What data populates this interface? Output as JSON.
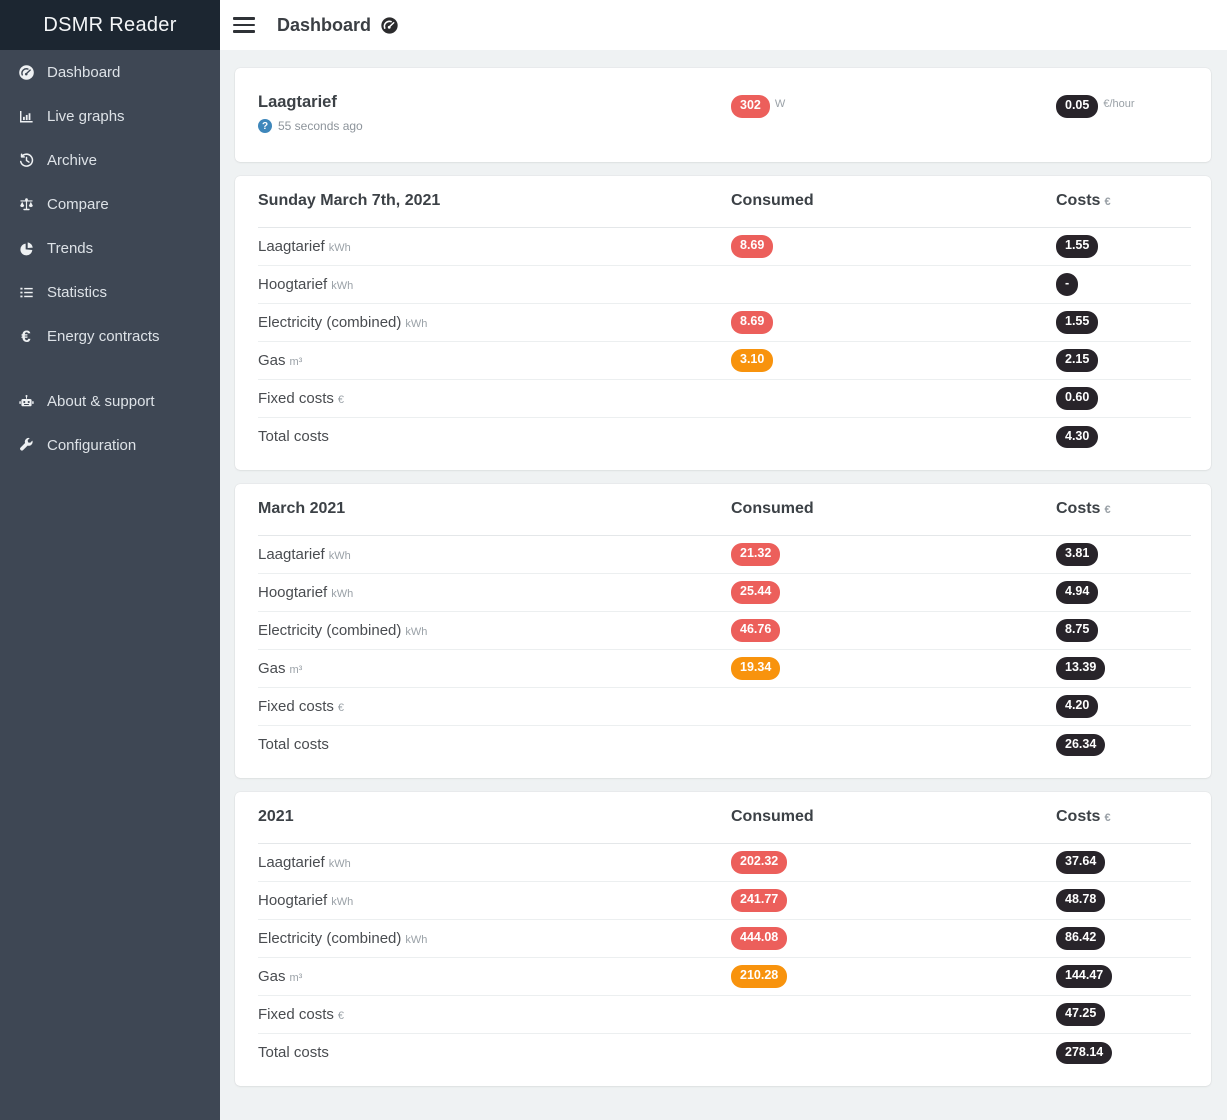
{
  "app": {
    "title": "DSMR Reader"
  },
  "topbar": {
    "title": "Dashboard",
    "title_icon": "gauge"
  },
  "sidebar": {
    "items": [
      {
        "label": "Dashboard",
        "icon": "gauge"
      },
      {
        "label": "Live graphs",
        "icon": "bar-chart"
      },
      {
        "label": "Archive",
        "icon": "history"
      },
      {
        "label": "Compare",
        "icon": "balance-scale"
      },
      {
        "label": "Trends",
        "icon": "pie-chart"
      },
      {
        "label": "Statistics",
        "icon": "list"
      },
      {
        "label": "Energy contracts",
        "icon": "euro"
      }
    ],
    "secondary_items": [
      {
        "label": "About & support",
        "icon": "robot"
      },
      {
        "label": "Configuration",
        "icon": "wrench"
      }
    ]
  },
  "live_card": {
    "title": "Laagtarief",
    "updated": "55 seconds ago",
    "consumed": {
      "value": "302",
      "unit": "W",
      "color": "red"
    },
    "costs": {
      "value": "0.05",
      "unit": "€/hour"
    }
  },
  "tables": [
    {
      "title": "Sunday March 7th, 2021",
      "columns": {
        "consumed": "Consumed",
        "costs": "Costs",
        "costs_unit": "€"
      },
      "rows": [
        {
          "label": "Laagtarief",
          "unit": "kWh",
          "consumed": "8.69",
          "consumed_color": "red",
          "costs": "1.55"
        },
        {
          "label": "Hoogtarief",
          "unit": "kWh",
          "consumed": null,
          "consumed_color": null,
          "costs": "-"
        },
        {
          "label": "Electricity (combined)",
          "unit": "kWh",
          "consumed": "8.69",
          "consumed_color": "red",
          "costs": "1.55"
        },
        {
          "label": "Gas",
          "unit": "m³",
          "consumed": "3.10",
          "consumed_color": "orange",
          "costs": "2.15"
        },
        {
          "label": "Fixed costs",
          "unit": "€",
          "consumed": null,
          "consumed_color": null,
          "costs": "0.60"
        },
        {
          "label": "Total costs",
          "unit": "",
          "consumed": null,
          "consumed_color": null,
          "costs": "4.30"
        }
      ]
    },
    {
      "title": "March 2021",
      "columns": {
        "consumed": "Consumed",
        "costs": "Costs",
        "costs_unit": "€"
      },
      "rows": [
        {
          "label": "Laagtarief",
          "unit": "kWh",
          "consumed": "21.32",
          "consumed_color": "red",
          "costs": "3.81"
        },
        {
          "label": "Hoogtarief",
          "unit": "kWh",
          "consumed": "25.44",
          "consumed_color": "red",
          "costs": "4.94"
        },
        {
          "label": "Electricity (combined)",
          "unit": "kWh",
          "consumed": "46.76",
          "consumed_color": "red",
          "costs": "8.75"
        },
        {
          "label": "Gas",
          "unit": "m³",
          "consumed": "19.34",
          "consumed_color": "orange",
          "costs": "13.39"
        },
        {
          "label": "Fixed costs",
          "unit": "€",
          "consumed": null,
          "consumed_color": null,
          "costs": "4.20"
        },
        {
          "label": "Total costs",
          "unit": "",
          "consumed": null,
          "consumed_color": null,
          "costs": "26.34"
        }
      ]
    },
    {
      "title": "2021",
      "columns": {
        "consumed": "Consumed",
        "costs": "Costs",
        "costs_unit": "€"
      },
      "rows": [
        {
          "label": "Laagtarief",
          "unit": "kWh",
          "consumed": "202.32",
          "consumed_color": "red",
          "costs": "37.64"
        },
        {
          "label": "Hoogtarief",
          "unit": "kWh",
          "consumed": "241.77",
          "consumed_color": "red",
          "costs": "48.78"
        },
        {
          "label": "Electricity (combined)",
          "unit": "kWh",
          "consumed": "444.08",
          "consumed_color": "red",
          "costs": "86.42"
        },
        {
          "label": "Gas",
          "unit": "m³",
          "consumed": "210.28",
          "consumed_color": "orange",
          "costs": "144.47"
        },
        {
          "label": "Fixed costs",
          "unit": "€",
          "consumed": null,
          "consumed_color": null,
          "costs": "47.25"
        },
        {
          "label": "Total costs",
          "unit": "",
          "consumed": null,
          "consumed_color": null,
          "costs": "278.14"
        }
      ]
    }
  ],
  "colors": {
    "badge_red": "#ec5f5b",
    "badge_orange": "#f8930d",
    "badge_dark": "#28242a",
    "help_blue": "#3e87bb",
    "sidebar_bg": "#3e4754",
    "sidebar_header_bg": "#1c2631"
  }
}
